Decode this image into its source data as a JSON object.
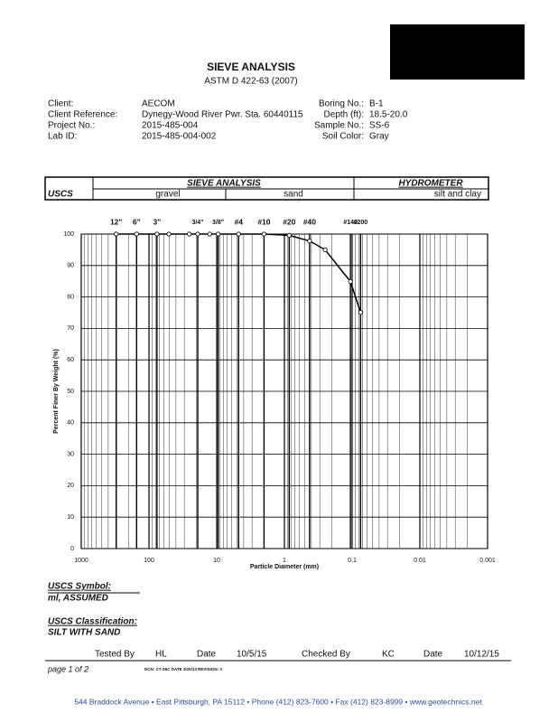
{
  "header": {
    "title": "SIEVE ANALYSIS",
    "subtitle": "ASTM D 422-63 (2007)"
  },
  "info": {
    "left": [
      {
        "label": "Client:",
        "value": "AECOM"
      },
      {
        "label": "Client Reference:",
        "value": "Dynegy-Wood River Pwr. Sta. 60440115"
      },
      {
        "label": "Project No.:",
        "value": "2015-485-004"
      },
      {
        "label": "Lab ID:",
        "value": "2015-485-004-002"
      }
    ],
    "right": [
      {
        "label": "Boring No.:",
        "value": "B-1"
      },
      {
        "label": "Depth (ft):",
        "value": "18.5-20.0"
      },
      {
        "label": "Sample No.:",
        "value": "SS-6"
      },
      {
        "label": "Soil Color:",
        "value": "Gray"
      }
    ]
  },
  "classification_table": {
    "sieve_analysis": "SIEVE ANALYSIS",
    "hydrometer": "HYDROMETER",
    "uscs": "USCS",
    "gravel": "gravel",
    "sand": "sand",
    "silt_clay": "silt and clay"
  },
  "chart_data": {
    "type": "line",
    "xlabel": "Particle Diameter (mm)",
    "ylabel": "Percent Finer By Weight (%)",
    "x": [
      304.8,
      152.4,
      76.2,
      50.8,
      25.4,
      19.05,
      12.7,
      9.525,
      4.75,
      2.0,
      0.85,
      0.425,
      0.25,
      0.106,
      0.075
    ],
    "values": [
      100,
      100,
      100,
      100,
      100,
      100,
      100,
      100,
      100,
      100,
      99.6,
      97.8,
      95,
      84.9,
      75.1
    ],
    "color": "#000000",
    "xscale": "log",
    "xlim": [
      1000,
      0.001
    ],
    "ylim": [
      0,
      100
    ],
    "xticks": [
      1000,
      100,
      10,
      1,
      0.1,
      0.01,
      0.001
    ],
    "yticks": [
      0,
      10,
      20,
      30,
      40,
      50,
      60,
      70,
      80,
      90,
      100
    ],
    "grid": true,
    "sieve_ticks": [
      {
        "value": 304.8,
        "label": "12\""
      },
      {
        "value": 152.4,
        "label": "6\""
      },
      {
        "value": 76.2,
        "label": "3\""
      },
      {
        "value": 19.05,
        "label": "3/4\""
      },
      {
        "value": 9.525,
        "label": "3/8\""
      },
      {
        "value": 4.75,
        "label": "#4"
      },
      {
        "value": 2.0,
        "label": "#10"
      },
      {
        "value": 0.85,
        "label": "#20"
      },
      {
        "value": 0.425,
        "label": "#40"
      },
      {
        "value": 0.106,
        "label": "#140"
      },
      {
        "value": 0.075,
        "label": "#200"
      }
    ]
  },
  "uscs_symbol": {
    "label": "USCS Symbol:",
    "value": "ml, ASSUMED"
  },
  "uscs_classification": {
    "label": "USCS Classification:",
    "value": "SILT WITH SAND"
  },
  "signatures": {
    "tested_by_label": "Tested By",
    "tested_by": "HL",
    "date1_label": "Date",
    "date1": "10/5/15",
    "checked_by_label": "Checked By",
    "checked_by": "KC",
    "date2_label": "Date",
    "date2": "10/12/15"
  },
  "page": "page 1 of 2",
  "dcn": "DCN: CT-S5C DATE 3/20/13  REVISION: 3",
  "footer": "544 Braddock Avenue  •  East Pittsburgh, PA 15112  •  Phone (412) 823-7600  •  Fax (412) 823-8999  •  www.geotechnics.net"
}
